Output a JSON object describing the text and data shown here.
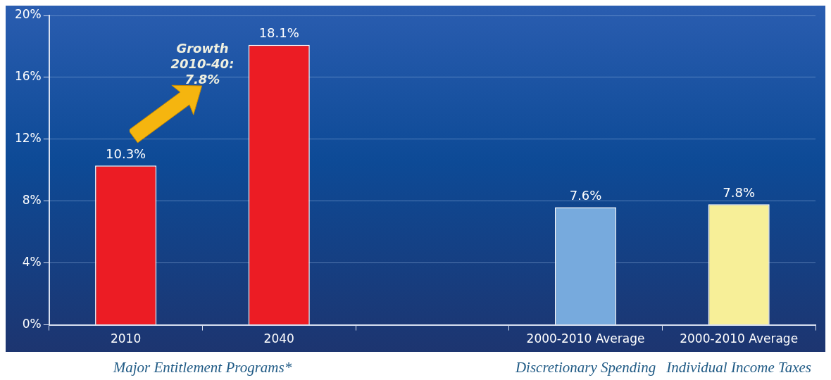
{
  "chart_data": {
    "type": "bar",
    "categories": [
      "2010",
      "2040",
      null,
      "2000-2010 Average",
      "2000-2010 Average"
    ],
    "values": [
      10.3,
      18.1,
      null,
      7.6,
      7.8
    ],
    "colors": [
      "#ec1c24",
      "#ec1c24",
      "#ec1c24",
      "#77aadd",
      "#f7ef98"
    ],
    "value_labels": [
      "10.3%",
      "18.1%",
      null,
      "7.6%",
      "7.8%"
    ],
    "ylim": [
      0,
      20
    ],
    "yticks": [
      {
        "value": 0,
        "label": "0%"
      },
      {
        "value": 4,
        "label": "4%"
      },
      {
        "value": 8,
        "label": "8%"
      },
      {
        "value": 12,
        "label": "12%"
      },
      {
        "value": 16,
        "label": "16%"
      },
      {
        "value": 20,
        "label": "20%"
      }
    ],
    "grid": "y",
    "legend": false,
    "annotations": [
      "Growth 2010-40: 7.8%",
      "Major Entitlement Programs*",
      "Discretionary Spending",
      "Individual Income Taxes"
    ]
  }
}
